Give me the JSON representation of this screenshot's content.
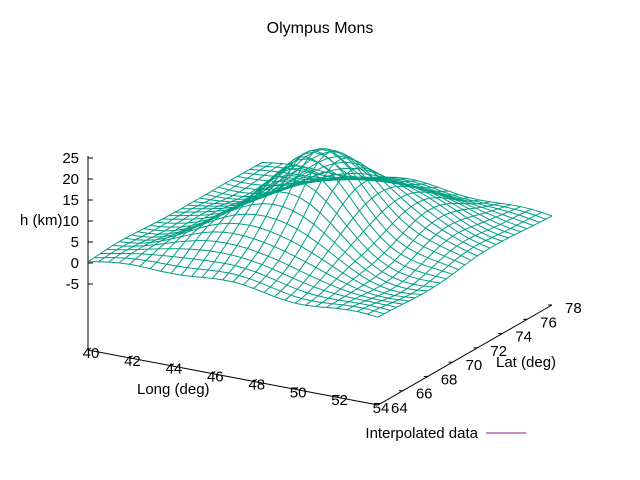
{
  "chart_data": {
    "type": "surface-mesh",
    "title": "Olympus Mons",
    "xlabel": "Long (deg)",
    "ylabel": "Lat (deg)",
    "zlabel": "h (km)",
    "xlim": [
      40,
      54
    ],
    "ylim": [
      64,
      78
    ],
    "zlim": [
      -5,
      25
    ],
    "x_ticks": [
      "40",
      "42",
      "44",
      "46",
      "48",
      "50",
      "52",
      "54"
    ],
    "y_ticks": [
      "64",
      "66",
      "68",
      "70",
      "72",
      "74",
      "76",
      "78"
    ],
    "z_ticks": [
      "25",
      "20",
      "15",
      "10",
      "5",
      "0",
      "-5"
    ],
    "legend": {
      "label": "Interpolated data",
      "color": "#8b1a8b",
      "position": "bottom-right"
    },
    "series_color": "#009e84",
    "grid_size": [
      29,
      29
    ],
    "surface_model": {
      "base_km": 0,
      "peaks": [
        {
          "long": 47.2,
          "lat": 70.6,
          "height_km": 21.5,
          "sigma_long": 2.3,
          "sigma_lat": 2.6
        },
        {
          "long": 44.0,
          "lat": 66.5,
          "height_km": 4.0,
          "sigma_long": 2.2,
          "sigma_lat": 1.8
        },
        {
          "long": 51.0,
          "lat": 73.5,
          "height_km": 4.0,
          "sigma_long": 2.0,
          "sigma_lat": 2.2
        },
        {
          "long": 47.0,
          "lat": 76.0,
          "height_km": 3.0,
          "sigma_long": 3.0,
          "sigma_lat": 2.0
        }
      ],
      "trough": {
        "long": 50.5,
        "lat": 69.5,
        "depth_km": 2.5,
        "sigma_long": 2.0,
        "sigma_lat": 2.0
      }
    }
  }
}
